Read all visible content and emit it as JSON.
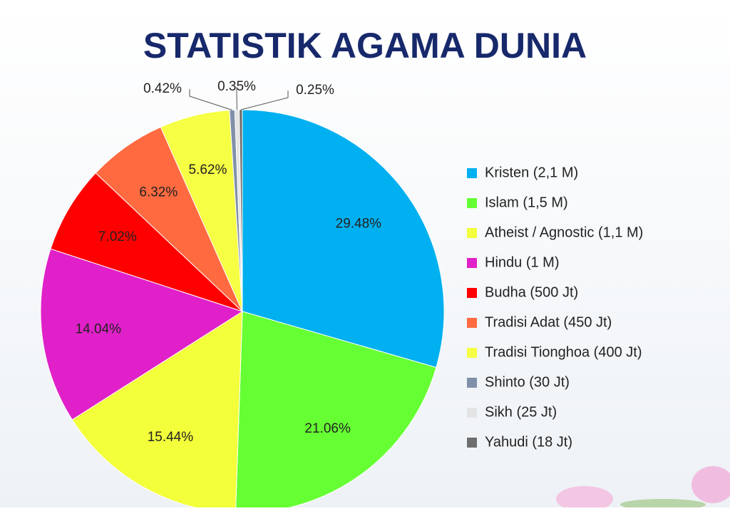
{
  "chart_data": {
    "type": "pie",
    "title": "STATISTIK AGAMA DUNIA",
    "categories": [
      "Kristen (2,1 M)",
      "Islam (1,5 M)",
      "Atheist / Agnostic (1,1 M)",
      "Hindu (1 M)",
      "Budha (500 Jt)",
      "Tradisi Adat (450 Jt)",
      "Tradisi Tionghoa (400 Jt)",
      "Shinto (30 Jt)",
      "Sikh (25 Jt)",
      "Yahudi (18 Jt)"
    ],
    "values": [
      29.48,
      21.06,
      15.44,
      14.04,
      7.02,
      6.32,
      5.62,
      0.42,
      0.35,
      0.25
    ],
    "value_labels": [
      "29.48%",
      "21.06%",
      "15.44%",
      "14.04%",
      "7.02%",
      "6.32%",
      "5.62%",
      "0.42%",
      "0.35%",
      "0.25%"
    ],
    "colors": [
      "#00b0f0",
      "#66ff33",
      "#f2ff3a",
      "#e020c8",
      "#ff0000",
      "#ff6a40",
      "#f6ff44",
      "#8090a8",
      "#e4e4e4",
      "#6e6e6e"
    ],
    "legend": "right"
  }
}
